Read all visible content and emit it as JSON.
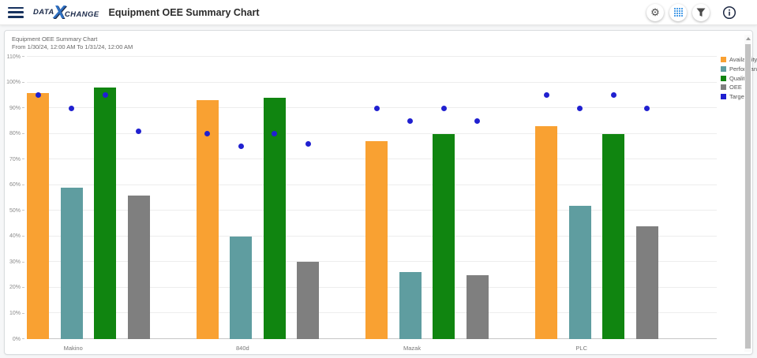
{
  "header": {
    "logo": {
      "part1": "DATA",
      "part2": "X",
      "part3": "CHANGE"
    },
    "title": "Equipment OEE Summary Chart"
  },
  "chart_data": {
    "type": "bar",
    "title": "Equipment OEE Summary Chart",
    "subtitle": "From 1/30/24, 12:00 AM To 1/31/24, 12:00 AM",
    "categories": [
      "Makino",
      "840d",
      "Mazak",
      "PLC"
    ],
    "series": [
      {
        "name": "Availability",
        "color": "#F9A132",
        "values": [
          96,
          93,
          77,
          83
        ]
      },
      {
        "name": "Performance",
        "color": "#5F9DA0",
        "values": [
          59,
          40,
          26,
          52
        ]
      },
      {
        "name": "Quality",
        "color": "#108510",
        "values": [
          98,
          94,
          80,
          80
        ]
      },
      {
        "name": "OEE",
        "color": "#7F7F7F",
        "values": [
          56,
          30,
          25,
          44
        ]
      }
    ],
    "target": {
      "name": "Target",
      "color": "#2020D0",
      "style": "point",
      "values_by_category": [
        [
          95,
          90,
          95,
          81
        ],
        [
          80,
          75,
          80,
          76
        ],
        [
          90,
          85,
          90,
          85
        ],
        [
          95,
          90,
          95,
          90
        ]
      ]
    },
    "ylim": [
      0,
      110
    ],
    "ytick_step": 10,
    "ytick_suffix": "%",
    "grid": true,
    "legend_position": "top-right",
    "legend": [
      "Availability",
      "Performance",
      "Quality",
      "OEE",
      "Target"
    ]
  }
}
